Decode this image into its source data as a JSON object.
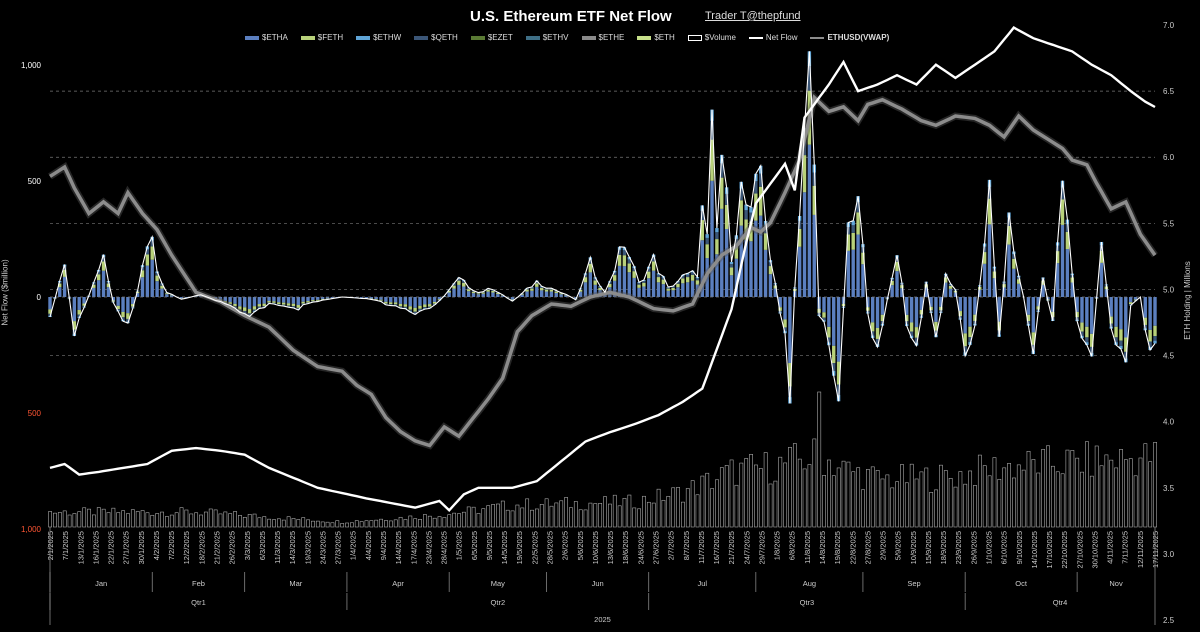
{
  "title": "U.S. Ethereum ETF Net Flow",
  "credit": "Trader T@thepfund",
  "legend": [
    {
      "label": "$ETHA",
      "color": "#5b7fbf",
      "kind": "bar"
    },
    {
      "label": "$FETH",
      "color": "#b8d17a",
      "kind": "bar"
    },
    {
      "label": "$ETHW",
      "color": "#5fa4d6",
      "kind": "bar"
    },
    {
      "label": "$QETH",
      "color": "#3b5677",
      "kind": "bar"
    },
    {
      "label": "$EZET",
      "color": "#5a7a34",
      "kind": "bar"
    },
    {
      "label": "$ETHV",
      "color": "#3f6f86",
      "kind": "bar"
    },
    {
      "label": "$ETHE",
      "color": "#8a8a8a",
      "kind": "bar"
    },
    {
      "label": "$ETH",
      "color": "#c7e08a",
      "kind": "bar"
    },
    {
      "label": "$Volume",
      "color": "#ffffff",
      "kind": "outline"
    },
    {
      "label": "Net Flow",
      "color": "#ffffff",
      "kind": "line"
    },
    {
      "label": "ETHUSD(VWAP)",
      "color": "#8c8c8c",
      "kind": "line"
    }
  ],
  "axes": {
    "left_title": "Net Flow ($million)",
    "right_title": "ETH Holding | Millions",
    "left_ticks": [
      {
        "v": 1000,
        "label": "1,000",
        "color": "#ffffff"
      },
      {
        "v": 500,
        "label": "500",
        "color": "#ffffff"
      },
      {
        "v": 0,
        "label": "0",
        "color": "#ffffff"
      },
      {
        "v": -500,
        "label": "500",
        "color": "#ff5533"
      },
      {
        "v": -1000,
        "label": "1,000",
        "color": "#ff5533"
      }
    ],
    "right_ticks": [
      "2.5",
      "3.0",
      "3.5",
      "4.0",
      "4.5",
      "5.0",
      "5.5",
      "6.0",
      "6.5",
      "7.0"
    ],
    "date_ticks": [
      "2/1/2025",
      "7/1/2025",
      "13/1/2025",
      "16/1/2025",
      "22/1/2025",
      "27/1/2025",
      "30/1/2025",
      "4/2/2025",
      "7/2/2025",
      "12/2/2025",
      "18/2/2025",
      "21/2/2025",
      "26/2/2025",
      "3/3/2025",
      "6/3/2025",
      "11/3/2025",
      "14/3/2025",
      "19/3/2025",
      "24/3/2025",
      "27/3/2025",
      "1/4/2025",
      "4/4/2025",
      "9/4/2025",
      "14/4/2025",
      "17/4/2025",
      "23/4/2025",
      "28/4/2025",
      "1/5/2025",
      "6/5/2025",
      "9/5/2025",
      "14/5/2025",
      "19/5/2025",
      "22/5/2025",
      "28/5/2025",
      "2/6/2025",
      "5/6/2025",
      "10/6/2025",
      "13/6/2025",
      "18/6/2025",
      "24/6/2025",
      "27/6/2025",
      "2/7/2025",
      "8/7/2025",
      "11/7/2025",
      "16/7/2025",
      "21/7/2025",
      "24/7/2025",
      "29/7/2025",
      "1/8/2025",
      "6/8/2025",
      "11/8/2025",
      "14/8/2025",
      "19/8/2025",
      "22/8/2025",
      "27/8/2025",
      "2/9/2025",
      "5/9/2025",
      "10/9/2025",
      "15/9/2025",
      "18/9/2025",
      "23/9/2025",
      "26/9/2025",
      "1/10/2025",
      "6/10/2025",
      "9/10/2025",
      "14/10/2025",
      "17/10/2025",
      "22/10/2025",
      "27/10/2025",
      "30/10/2025",
      "4/11/2025",
      "7/11/2025",
      "12/11/2025",
      "17/11/2025"
    ],
    "months": [
      "Jan",
      "Feb",
      "Mar",
      "Apr",
      "May",
      "Jun",
      "Jul",
      "Aug",
      "Sep",
      "Oct",
      "Nov"
    ],
    "quarters": [
      "Qtr1",
      "Qtr2",
      "Qtr3",
      "Qtr4"
    ],
    "year": "2025"
  },
  "chart_data": {
    "type": "bar",
    "title": "U.S. Ethereum ETF Net Flow",
    "x_range": [
      "2/1/2025",
      "17/11/2025"
    ],
    "left_axis": {
      "label": "Net Flow ($million)",
      "ylim": [
        -1000,
        1000
      ]
    },
    "right_axis": {
      "label": "ETH Holding | Millions",
      "ylim": [
        2.5,
        7.0
      ]
    },
    "grid": true,
    "legend_position": "top",
    "net_flow_anchors": [
      [
        0,
        -80
      ],
      [
        3,
        130
      ],
      [
        5,
        -150
      ],
      [
        9,
        60
      ],
      [
        11,
        180
      ],
      [
        13,
        -30
      ],
      [
        16,
        -150
      ],
      [
        19,
        120
      ],
      [
        21,
        300
      ],
      [
        22,
        120
      ],
      [
        24,
        20
      ],
      [
        27,
        -10
      ],
      [
        31,
        10
      ],
      [
        36,
        -30
      ],
      [
        40,
        -90
      ],
      [
        45,
        -30
      ],
      [
        50,
        -60
      ],
      [
        55,
        -20
      ],
      [
        60,
        0
      ],
      [
        66,
        -10
      ],
      [
        70,
        -40
      ],
      [
        75,
        -80
      ],
      [
        80,
        -20
      ],
      [
        84,
        80
      ],
      [
        88,
        20
      ],
      [
        91,
        40
      ],
      [
        95,
        -20
      ],
      [
        100,
        70
      ],
      [
        104,
        30
      ],
      [
        108,
        -10
      ],
      [
        111,
        150
      ],
      [
        114,
        20
      ],
      [
        118,
        250
      ],
      [
        121,
        60
      ],
      [
        124,
        170
      ],
      [
        127,
        40
      ],
      [
        130,
        90
      ],
      [
        133,
        110
      ],
      [
        134,
        380
      ],
      [
        135,
        250
      ],
      [
        136,
        720
      ],
      [
        137,
        300
      ],
      [
        138,
        650
      ],
      [
        140,
        200
      ],
      [
        142,
        480
      ],
      [
        144,
        350
      ],
      [
        146,
        590
      ],
      [
        148,
        180
      ],
      [
        151,
        -200
      ],
      [
        152,
        -480
      ],
      [
        153,
        50
      ],
      [
        155,
        700
      ],
      [
        156,
        1010
      ],
      [
        157,
        600
      ],
      [
        158,
        -80
      ],
      [
        160,
        -200
      ],
      [
        162,
        -420
      ],
      [
        164,
        320
      ],
      [
        166,
        480
      ],
      [
        168,
        -80
      ],
      [
        170,
        -230
      ],
      [
        172,
        -10
      ],
      [
        174,
        230
      ],
      [
        176,
        -120
      ],
      [
        178,
        -260
      ],
      [
        180,
        80
      ],
      [
        182,
        -220
      ],
      [
        184,
        100
      ],
      [
        186,
        30
      ],
      [
        188,
        -270
      ],
      [
        190,
        -150
      ],
      [
        193,
        460
      ],
      [
        195,
        -200
      ],
      [
        197,
        320
      ],
      [
        200,
        0
      ],
      [
        202,
        -230
      ],
      [
        204,
        100
      ],
      [
        206,
        -130
      ],
      [
        208,
        560
      ],
      [
        211,
        -120
      ],
      [
        214,
        -270
      ],
      [
        216,
        250
      ],
      [
        218,
        -150
      ],
      [
        221,
        -270
      ],
      [
        222,
        -40
      ],
      [
        224,
        0
      ],
      [
        225,
        -170
      ],
      [
        226,
        -250
      ],
      [
        227,
        -200
      ]
    ],
    "volume_anchors": [
      [
        0,
        0.15
      ],
      [
        30,
        0.15
      ],
      [
        60,
        0.05
      ],
      [
        80,
        0.12
      ],
      [
        95,
        0.22
      ],
      [
        120,
        0.25
      ],
      [
        130,
        0.35
      ],
      [
        140,
        0.55
      ],
      [
        150,
        0.62
      ],
      [
        158,
        0.72
      ],
      [
        163,
        0.58
      ],
      [
        170,
        0.48
      ],
      [
        185,
        0.5
      ],
      [
        195,
        0.6
      ],
      [
        210,
        0.65
      ],
      [
        227,
        0.7
      ]
    ],
    "eth_holding_anchors": [
      [
        0,
        3.65
      ],
      [
        3,
        3.68
      ],
      [
        6,
        3.6
      ],
      [
        10,
        3.62
      ],
      [
        15,
        3.65
      ],
      [
        20,
        3.68
      ],
      [
        25,
        3.78
      ],
      [
        30,
        3.8
      ],
      [
        35,
        3.78
      ],
      [
        40,
        3.75
      ],
      [
        45,
        3.65
      ],
      [
        55,
        3.5
      ],
      [
        65,
        3.42
      ],
      [
        75,
        3.35
      ],
      [
        80,
        3.4
      ],
      [
        82,
        3.33
      ],
      [
        85,
        3.45
      ],
      [
        88,
        3.5
      ],
      [
        95,
        3.5
      ],
      [
        100,
        3.55
      ],
      [
        105,
        3.7
      ],
      [
        110,
        3.85
      ],
      [
        115,
        3.92
      ],
      [
        120,
        3.98
      ],
      [
        125,
        4.05
      ],
      [
        130,
        4.15
      ],
      [
        134,
        4.25
      ],
      [
        137,
        4.55
      ],
      [
        140,
        4.85
      ],
      [
        143,
        5.35
      ],
      [
        145,
        5.65
      ],
      [
        148,
        5.8
      ],
      [
        151,
        5.95
      ],
      [
        153,
        5.75
      ],
      [
        155,
        6.3
      ],
      [
        157,
        6.4
      ],
      [
        160,
        6.55
      ],
      [
        163,
        6.72
      ],
      [
        166,
        6.5
      ],
      [
        170,
        6.55
      ],
      [
        174,
        6.62
      ],
      [
        178,
        6.55
      ],
      [
        182,
        6.7
      ],
      [
        186,
        6.6
      ],
      [
        190,
        6.7
      ],
      [
        194,
        6.8
      ],
      [
        198,
        6.98
      ],
      [
        202,
        6.9
      ],
      [
        206,
        6.85
      ],
      [
        210,
        6.8
      ],
      [
        214,
        6.7
      ],
      [
        218,
        6.62
      ],
      [
        222,
        6.5
      ],
      [
        225,
        6.42
      ],
      [
        227,
        6.38
      ]
    ],
    "eth_price_anchors": [
      [
        0,
        520
      ],
      [
        3,
        560
      ],
      [
        5,
        470
      ],
      [
        8,
        360
      ],
      [
        11,
        410
      ],
      [
        14,
        360
      ],
      [
        16,
        450
      ],
      [
        19,
        360
      ],
      [
        22,
        290
      ],
      [
        25,
        180
      ],
      [
        30,
        20
      ],
      [
        35,
        -20
      ],
      [
        40,
        -80
      ],
      [
        45,
        -130
      ],
      [
        50,
        -230
      ],
      [
        55,
        -300
      ],
      [
        60,
        -320
      ],
      [
        63,
        -380
      ],
      [
        66,
        -420
      ],
      [
        69,
        -520
      ],
      [
        72,
        -580
      ],
      [
        75,
        -620
      ],
      [
        78,
        -640
      ],
      [
        81,
        -560
      ],
      [
        84,
        -600
      ],
      [
        87,
        -520
      ],
      [
        90,
        -440
      ],
      [
        93,
        -350
      ],
      [
        96,
        -150
      ],
      [
        99,
        -80
      ],
      [
        103,
        -30
      ],
      [
        107,
        -40
      ],
      [
        111,
        0
      ],
      [
        115,
        20
      ],
      [
        119,
        0
      ],
      [
        124,
        -50
      ],
      [
        128,
        -60
      ],
      [
        132,
        -30
      ],
      [
        135,
        100
      ],
      [
        138,
        180
      ],
      [
        141,
        220
      ],
      [
        144,
        300
      ],
      [
        146,
        280
      ],
      [
        148,
        320
      ],
      [
        151,
        450
      ],
      [
        154,
        590
      ],
      [
        157,
        860
      ],
      [
        160,
        800
      ],
      [
        163,
        820
      ],
      [
        166,
        760
      ],
      [
        168,
        830
      ],
      [
        171,
        850
      ],
      [
        175,
        810
      ],
      [
        179,
        760
      ],
      [
        182,
        740
      ],
      [
        186,
        780
      ],
      [
        190,
        770
      ],
      [
        193,
        740
      ],
      [
        196,
        690
      ],
      [
        199,
        780
      ],
      [
        202,
        720
      ],
      [
        205,
        680
      ],
      [
        208,
        640
      ],
      [
        210,
        590
      ],
      [
        213,
        570
      ],
      [
        215,
        490
      ],
      [
        218,
        380
      ],
      [
        221,
        410
      ],
      [
        224,
        270
      ],
      [
        227,
        180
      ]
    ]
  }
}
